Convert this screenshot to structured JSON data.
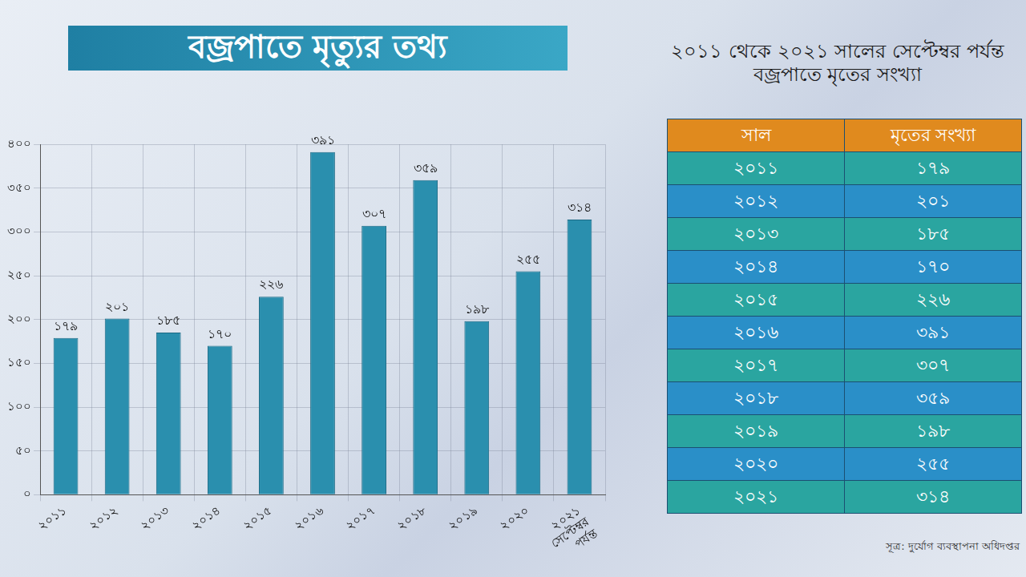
{
  "title": "বজ্রপাতে মৃত্যুর তথ্য",
  "chart_data": {
    "type": "bar",
    "categories": [
      "২০১১",
      "২০১২",
      "২০১৩",
      "২০১৪",
      "২০১৫",
      "২০১৬",
      "২০১৭",
      "২০১৮",
      "২০১৯",
      "২০২০",
      "২০২১ সেপ্টেম্বর পর্যন্ত"
    ],
    "values": [
      179,
      201,
      185,
      170,
      226,
      391,
      307,
      359,
      198,
      255,
      314
    ],
    "value_labels": [
      "১৭৯",
      "২০১",
      "১৮৫",
      "১৭০",
      "২২৬",
      "৩৯১",
      "৩০৭",
      "৩৫৯",
      "১৯৮",
      "২৫৫",
      "৩১৪"
    ],
    "color": "#2a8fae",
    "ylim": [
      0,
      400
    ],
    "yticks": [
      {
        "value": 0,
        "label": "০"
      },
      {
        "value": 50,
        "label": "৫০"
      },
      {
        "value": 100,
        "label": "১০০"
      },
      {
        "value": 150,
        "label": "১৫০"
      },
      {
        "value": 200,
        "label": "২০০"
      },
      {
        "value": 250,
        "label": "২৫০"
      },
      {
        "value": 300,
        "label": "৩০০"
      },
      {
        "value": 350,
        "label": "৩৫০"
      },
      {
        "value": 400,
        "label": "৪০০"
      }
    ],
    "grid": true,
    "data_labels": true
  },
  "table": {
    "title": "২০১১ থেকে ২০২১ সালের সেপ্টেম্বর পর্যন্ত বজ্রপাতে মৃতের সংখ্যা",
    "header": [
      "সাল",
      "মৃতের সংখ্যা"
    ],
    "rows": [
      [
        "২০১১",
        "১৭৯"
      ],
      [
        "২০১২",
        "২০১"
      ],
      [
        "২০১৩",
        "১৮৫"
      ],
      [
        "২০১৪",
        "১৭০"
      ],
      [
        "২০১৫",
        "২২৬"
      ],
      [
        "২০১৬",
        "৩৯১"
      ],
      [
        "২০১৭",
        "৩০৭"
      ],
      [
        "২০১৮",
        "৩৫৯"
      ],
      [
        "২০১৯",
        "১৯৮"
      ],
      [
        "২০২০",
        "২৫৫"
      ],
      [
        "২০২১",
        "৩১৪"
      ]
    ]
  },
  "source": "সূত্র: দুর্যোগ ব্যবস্থাপনা অধিদপ্তর"
}
